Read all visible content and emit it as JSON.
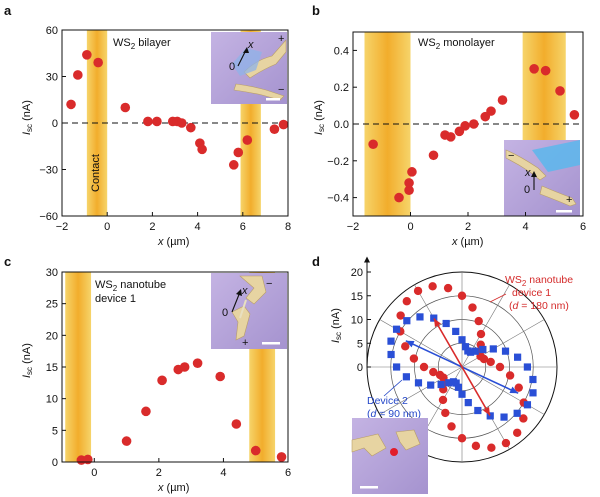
{
  "colors": {
    "red": "#d92b2b",
    "blue": "#2a4fd6",
    "band": "#f3b233",
    "inset": "#b7a6d8"
  },
  "chart_data": [
    {
      "panel": "a",
      "type": "scatter",
      "annotation": "WS2 bilayer",
      "band_label": "Contact",
      "xlabel": "x (µm)",
      "ylabel": "Isc (nA)",
      "xlim": [
        -2,
        8
      ],
      "ylim": [
        -60,
        60
      ],
      "xticks": [
        -2,
        0,
        2,
        4,
        6,
        8
      ],
      "yticks": [
        -60,
        -30,
        0,
        30,
        60
      ],
      "bands": [
        [
          -0.9,
          0.0
        ],
        [
          5.9,
          6.8
        ]
      ],
      "x": [
        -1.6,
        -1.3,
        -0.9,
        -0.4,
        0.8,
        1.8,
        2.2,
        2.9,
        3.1,
        3.3,
        3.7,
        4.1,
        4.2,
        5.6,
        5.8,
        6.2,
        7.4,
        7.8
      ],
      "y": [
        12,
        31,
        44,
        39,
        10,
        1,
        1,
        1,
        1,
        0,
        -3,
        -13,
        -17,
        -27,
        -19,
        -11,
        -4,
        -1
      ],
      "inset_labels": {
        "x": "x",
        "o": "0",
        "plus": "+",
        "minus": "−"
      }
    },
    {
      "panel": "b",
      "type": "scatter",
      "annotation": "WS2 monolayer",
      "xlabel": "x (µm)",
      "ylabel": "Isc (nA)",
      "xlim": [
        -2,
        6
      ],
      "ylim": [
        -0.5,
        0.5
      ],
      "xticks": [
        -2,
        0,
        2,
        4,
        6
      ],
      "yticks": [
        -0.4,
        -0.2,
        0.0,
        0.2,
        0.4
      ],
      "bands": [
        [
          -1.6,
          0.0
        ],
        [
          3.9,
          5.4
        ]
      ],
      "x": [
        -1.3,
        -0.4,
        -0.05,
        -0.05,
        0.05,
        0.8,
        1.2,
        1.4,
        1.7,
        1.9,
        2.2,
        2.6,
        2.8,
        3.2,
        4.3,
        4.7,
        5.2,
        5.7
      ],
      "y": [
        -0.11,
        -0.4,
        -0.36,
        -0.32,
        -0.26,
        -0.17,
        -0.06,
        -0.07,
        -0.04,
        -0.01,
        0.0,
        0.04,
        0.07,
        0.13,
        0.3,
        0.29,
        0.18,
        0.05
      ],
      "inset_labels": {
        "x": "x",
        "o": "0",
        "plus": "+",
        "minus": "−"
      }
    },
    {
      "panel": "c",
      "type": "scatter",
      "annotation": "WS2 nanotube",
      "annotation_line2": "device 1",
      "xlabel": "x (µm)",
      "ylabel": "Isc (nA)",
      "xlim": [
        -1,
        6
      ],
      "ylim": [
        0,
        30
      ],
      "xticks": [
        0,
        2,
        4,
        6
      ],
      "yticks": [
        0,
        5,
        10,
        15,
        20,
        25,
        30
      ],
      "bands": [
        [
          -0.9,
          -0.1
        ],
        [
          4.8,
          5.6
        ]
      ],
      "x": [
        -0.4,
        -0.2,
        1.0,
        1.6,
        2.1,
        2.6,
        2.8,
        3.2,
        3.9,
        4.4,
        5.0,
        5.8
      ],
      "y": [
        0.3,
        0.4,
        3.3,
        8.0,
        12.9,
        14.6,
        15.0,
        15.6,
        13.5,
        6.0,
        1.8,
        0.8
      ],
      "inset_labels": {
        "x": "x",
        "o": "0",
        "plus": "+",
        "minus": "−"
      }
    },
    {
      "panel": "d",
      "type": "polar-scatter",
      "ylabel": "Isc (nA)",
      "rticks": [
        0,
        5,
        10,
        15,
        20
      ],
      "rmax": 20,
      "series": [
        {
          "name": "WS2 nanotube",
          "name_line2": "device 1",
          "name_line3": "(d = 180 nm)",
          "marker": "circle",
          "r_max": 18.5,
          "r_min": 4.5,
          "axis_deg": 120
        },
        {
          "name": "Device 2",
          "name_line2": "(d = 90 nm)",
          "marker": "square",
          "r_max": 16.0,
          "r_min": 3.5,
          "axis_deg": 155
        }
      ]
    }
  ],
  "panel_d_labels": {
    "nanotube_a": "WS",
    "nanotube_b": " nanotube",
    "sub2": "2",
    "device1": "device 1",
    "d180": "(d = 180 nm)",
    "device2": "Device 2",
    "d90": "(d = 90 nm)"
  }
}
